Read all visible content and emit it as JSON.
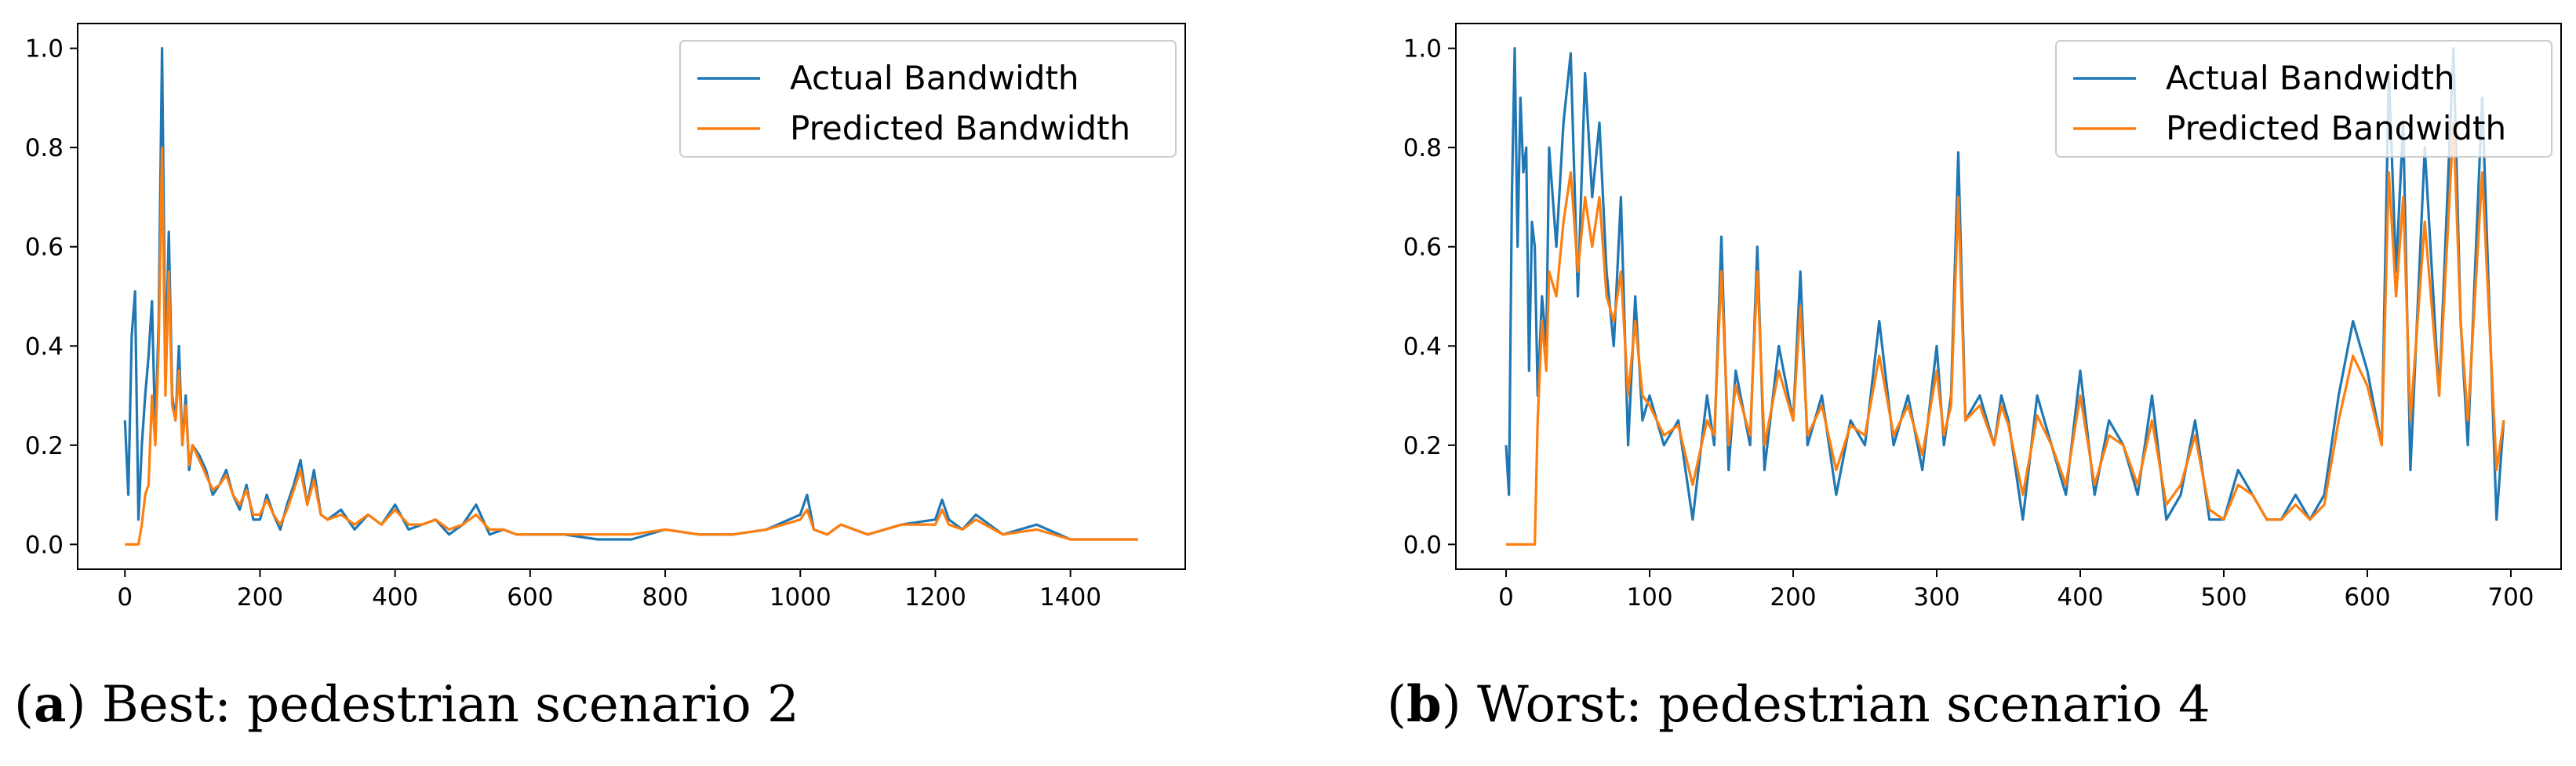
{
  "chart_data": [
    {
      "type": "line",
      "title": "",
      "xlabel": "",
      "ylabel": "",
      "caption_letter": "a",
      "caption_text": "Best: pedestrian scenario 2",
      "xlim": [
        -70,
        1570
      ],
      "ylim": [
        -0.05,
        1.05
      ],
      "xticks": [
        0,
        200,
        400,
        600,
        800,
        1000,
        1200,
        1400
      ],
      "xtick_labels": [
        "0",
        "200",
        "400",
        "600",
        "800",
        "1000",
        "1200",
        "1400"
      ],
      "yticks": [
        0.0,
        0.2,
        0.4,
        0.6,
        0.8,
        1.0
      ],
      "ytick_labels": [
        "0.0",
        "0.2",
        "0.4",
        "0.6",
        "0.8",
        "1.0"
      ],
      "legend_position": "top-right",
      "series": [
        {
          "name": "Actual Bandwidth",
          "color": "#1f77b4",
          "x": [
            0,
            5,
            10,
            15,
            20,
            25,
            30,
            35,
            40,
            45,
            50,
            55,
            60,
            65,
            70,
            75,
            80,
            85,
            90,
            95,
            100,
            110,
            120,
            130,
            140,
            150,
            160,
            170,
            180,
            190,
            200,
            210,
            220,
            230,
            240,
            250,
            260,
            270,
            280,
            290,
            300,
            320,
            340,
            360,
            380,
            400,
            420,
            440,
            460,
            480,
            500,
            520,
            540,
            560,
            580,
            600,
            650,
            700,
            750,
            800,
            850,
            900,
            950,
            1000,
            1010,
            1020,
            1040,
            1060,
            1100,
            1150,
            1200,
            1210,
            1220,
            1240,
            1260,
            1300,
            1350,
            1400,
            1450,
            1500
          ],
          "values": [
            0.25,
            0.1,
            0.42,
            0.51,
            0.05,
            0.2,
            0.3,
            0.38,
            0.49,
            0.22,
            0.45,
            1.0,
            0.35,
            0.63,
            0.3,
            0.25,
            0.4,
            0.2,
            0.3,
            0.15,
            0.2,
            0.18,
            0.15,
            0.1,
            0.12,
            0.15,
            0.1,
            0.07,
            0.12,
            0.05,
            0.05,
            0.1,
            0.06,
            0.03,
            0.08,
            0.12,
            0.17,
            0.08,
            0.15,
            0.06,
            0.05,
            0.07,
            0.03,
            0.06,
            0.04,
            0.08,
            0.03,
            0.04,
            0.05,
            0.02,
            0.04,
            0.08,
            0.02,
            0.03,
            0.02,
            0.02,
            0.02,
            0.01,
            0.01,
            0.03,
            0.02,
            0.02,
            0.03,
            0.06,
            0.1,
            0.03,
            0.02,
            0.04,
            0.02,
            0.04,
            0.05,
            0.09,
            0.05,
            0.03,
            0.06,
            0.02,
            0.04,
            0.01,
            0.01,
            0.01
          ]
        },
        {
          "name": "Predicted Bandwidth",
          "color": "#ff7f0e",
          "x": [
            0,
            5,
            10,
            15,
            20,
            25,
            30,
            35,
            40,
            45,
            50,
            55,
            60,
            65,
            70,
            75,
            80,
            85,
            90,
            95,
            100,
            110,
            120,
            130,
            140,
            150,
            160,
            170,
            180,
            190,
            200,
            210,
            220,
            230,
            240,
            250,
            260,
            270,
            280,
            290,
            300,
            320,
            340,
            360,
            380,
            400,
            420,
            440,
            460,
            480,
            500,
            520,
            540,
            560,
            580,
            600,
            650,
            700,
            750,
            800,
            850,
            900,
            950,
            1000,
            1010,
            1020,
            1040,
            1060,
            1100,
            1150,
            1200,
            1210,
            1220,
            1240,
            1260,
            1300,
            1350,
            1400,
            1450,
            1500
          ],
          "values": [
            0.0,
            0.0,
            0.0,
            0.0,
            0.0,
            0.04,
            0.1,
            0.12,
            0.3,
            0.2,
            0.4,
            0.8,
            0.3,
            0.55,
            0.28,
            0.25,
            0.35,
            0.2,
            0.28,
            0.16,
            0.2,
            0.17,
            0.14,
            0.11,
            0.12,
            0.14,
            0.1,
            0.08,
            0.11,
            0.06,
            0.06,
            0.09,
            0.06,
            0.04,
            0.07,
            0.11,
            0.15,
            0.08,
            0.13,
            0.06,
            0.05,
            0.06,
            0.04,
            0.06,
            0.04,
            0.07,
            0.04,
            0.04,
            0.05,
            0.03,
            0.04,
            0.06,
            0.03,
            0.03,
            0.02,
            0.02,
            0.02,
            0.02,
            0.02,
            0.03,
            0.02,
            0.02,
            0.03,
            0.05,
            0.07,
            0.03,
            0.02,
            0.04,
            0.02,
            0.04,
            0.04,
            0.07,
            0.04,
            0.03,
            0.05,
            0.02,
            0.03,
            0.01,
            0.01,
            0.01
          ]
        }
      ]
    },
    {
      "type": "line",
      "title": "",
      "xlabel": "",
      "ylabel": "",
      "caption_letter": "b",
      "caption_text": "Worst: pedestrian scenario 4",
      "xlim": [
        -35,
        735
      ],
      "ylim": [
        -0.05,
        1.05
      ],
      "xticks": [
        0,
        100,
        200,
        300,
        400,
        500,
        600,
        700
      ],
      "xtick_labels": [
        "0",
        "100",
        "200",
        "300",
        "400",
        "500",
        "600",
        "700"
      ],
      "yticks": [
        0.0,
        0.2,
        0.4,
        0.6,
        0.8,
        1.0
      ],
      "ytick_labels": [
        "0.0",
        "0.2",
        "0.4",
        "0.6",
        "0.8",
        "1.0"
      ],
      "legend_position": "top-right",
      "series": [
        {
          "name": "Actual Bandwidth",
          "color": "#1f77b4",
          "x": [
            0,
            2,
            4,
            6,
            8,
            10,
            12,
            14,
            16,
            18,
            20,
            22,
            25,
            28,
            30,
            35,
            40,
            45,
            50,
            55,
            60,
            65,
            70,
            75,
            80,
            85,
            90,
            95,
            100,
            110,
            120,
            130,
            140,
            145,
            150,
            155,
            160,
            170,
            175,
            180,
            190,
            200,
            205,
            210,
            220,
            230,
            240,
            250,
            260,
            270,
            280,
            290,
            300,
            305,
            310,
            315,
            320,
            330,
            340,
            345,
            350,
            360,
            370,
            380,
            390,
            400,
            410,
            420,
            430,
            440,
            450,
            460,
            470,
            480,
            490,
            500,
            510,
            520,
            530,
            540,
            550,
            560,
            570,
            580,
            590,
            600,
            610,
            615,
            620,
            625,
            630,
            640,
            650,
            660,
            665,
            670,
            680,
            690,
            695
          ],
          "values": [
            0.2,
            0.1,
            0.7,
            1.0,
            0.6,
            0.9,
            0.75,
            0.8,
            0.35,
            0.65,
            0.6,
            0.3,
            0.5,
            0.4,
            0.8,
            0.6,
            0.85,
            0.99,
            0.5,
            0.95,
            0.7,
            0.85,
            0.55,
            0.4,
            0.7,
            0.2,
            0.5,
            0.25,
            0.3,
            0.2,
            0.25,
            0.05,
            0.3,
            0.2,
            0.62,
            0.15,
            0.35,
            0.2,
            0.6,
            0.15,
            0.4,
            0.25,
            0.55,
            0.2,
            0.3,
            0.1,
            0.25,
            0.2,
            0.45,
            0.2,
            0.3,
            0.15,
            0.4,
            0.2,
            0.3,
            0.79,
            0.25,
            0.3,
            0.2,
            0.3,
            0.25,
            0.05,
            0.3,
            0.2,
            0.1,
            0.35,
            0.1,
            0.25,
            0.2,
            0.1,
            0.3,
            0.05,
            0.1,
            0.25,
            0.05,
            0.05,
            0.15,
            0.1,
            0.05,
            0.05,
            0.1,
            0.05,
            0.1,
            0.3,
            0.45,
            0.35,
            0.2,
            0.95,
            0.55,
            0.85,
            0.15,
            0.8,
            0.3,
            1.0,
            0.45,
            0.2,
            0.9,
            0.05,
            0.25
          ]
        },
        {
          "name": "Predicted Bandwidth",
          "color": "#ff7f0e",
          "x": [
            0,
            2,
            4,
            6,
            8,
            10,
            12,
            14,
            16,
            18,
            20,
            22,
            25,
            28,
            30,
            35,
            40,
            45,
            50,
            55,
            60,
            65,
            70,
            75,
            80,
            85,
            90,
            95,
            100,
            110,
            120,
            130,
            140,
            145,
            150,
            155,
            160,
            170,
            175,
            180,
            190,
            200,
            205,
            210,
            220,
            230,
            240,
            250,
            260,
            270,
            280,
            290,
            300,
            305,
            310,
            315,
            320,
            330,
            340,
            345,
            350,
            360,
            370,
            380,
            390,
            400,
            410,
            420,
            430,
            440,
            450,
            460,
            470,
            480,
            490,
            500,
            510,
            520,
            530,
            540,
            550,
            560,
            570,
            580,
            590,
            600,
            610,
            615,
            620,
            625,
            630,
            640,
            650,
            660,
            665,
            670,
            680,
            690,
            695
          ],
          "values": [
            0.0,
            0.0,
            0.0,
            0.0,
            0.0,
            0.0,
            0.0,
            0.0,
            0.0,
            0.0,
            0.0,
            0.25,
            0.45,
            0.35,
            0.55,
            0.5,
            0.65,
            0.75,
            0.55,
            0.7,
            0.6,
            0.7,
            0.5,
            0.45,
            0.55,
            0.3,
            0.45,
            0.3,
            0.28,
            0.22,
            0.24,
            0.12,
            0.25,
            0.22,
            0.55,
            0.2,
            0.32,
            0.22,
            0.55,
            0.2,
            0.35,
            0.25,
            0.48,
            0.22,
            0.28,
            0.15,
            0.24,
            0.22,
            0.38,
            0.22,
            0.28,
            0.18,
            0.35,
            0.22,
            0.28,
            0.7,
            0.25,
            0.28,
            0.2,
            0.28,
            0.24,
            0.1,
            0.26,
            0.2,
            0.12,
            0.3,
            0.12,
            0.22,
            0.2,
            0.12,
            0.25,
            0.08,
            0.12,
            0.22,
            0.07,
            0.05,
            0.12,
            0.1,
            0.05,
            0.05,
            0.08,
            0.05,
            0.08,
            0.25,
            0.38,
            0.32,
            0.2,
            0.75,
            0.5,
            0.7,
            0.25,
            0.65,
            0.3,
            0.85,
            0.45,
            0.25,
            0.75,
            0.15,
            0.25
          ]
        }
      ]
    }
  ]
}
